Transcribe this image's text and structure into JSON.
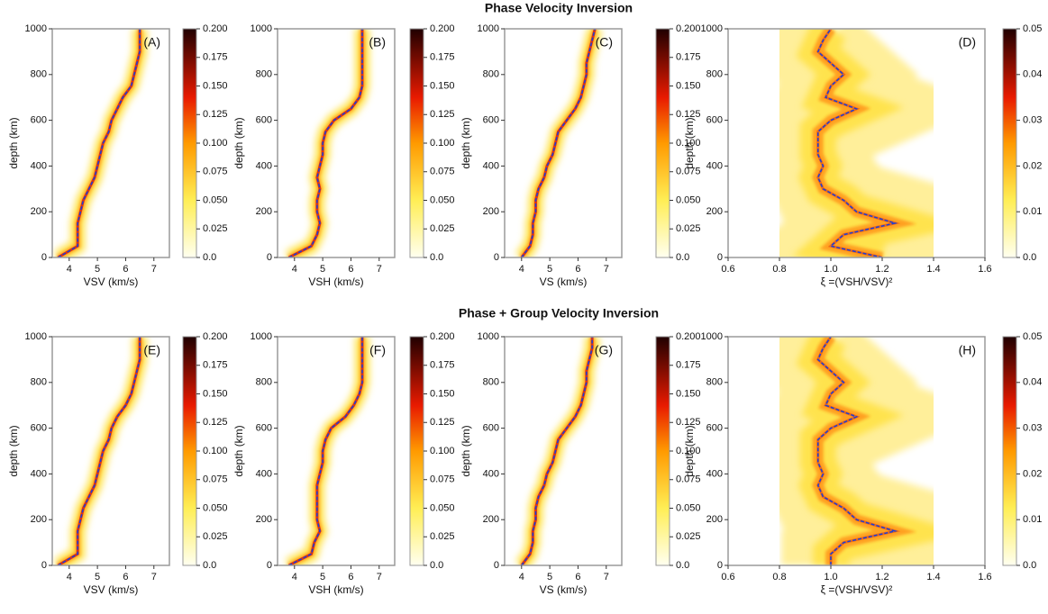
{
  "figure_titles": [
    "Phase Velocity Inversion",
    "Phase + Group Velocity Inversion"
  ],
  "chart_data": [
    {
      "type": "line",
      "label": "(A)",
      "xlabel": "VSV (km/s)",
      "ylabel": "depth (km)",
      "xlim": [
        3.4,
        7.55
      ],
      "xticks": [
        4,
        5,
        6,
        7
      ],
      "ylim": [
        1000,
        0
      ],
      "yticks": [
        0,
        200,
        400,
        600,
        800,
        1000
      ],
      "color": "#1a3fd6",
      "depth": [
        0,
        50,
        100,
        150,
        200,
        250,
        300,
        350,
        400,
        450,
        500,
        550,
        600,
        650,
        700,
        750,
        800,
        850,
        900,
        950,
        1000
      ],
      "values": [
        3.6,
        4.3,
        4.3,
        4.3,
        4.4,
        4.5,
        4.7,
        4.9,
        5.0,
        5.1,
        5.2,
        5.4,
        5.5,
        5.7,
        5.9,
        6.2,
        6.3,
        6.4,
        6.5,
        6.5,
        6.5
      ],
      "colorbar": {
        "lim": [
          0,
          0.2
        ],
        "ticks": [
          {
            "value": 0,
            "label": "0.0"
          },
          0.025,
          {
            "value": 0.05,
            "label": "0.050"
          },
          0.075,
          {
            "value": 0.1,
            "label": "0.100"
          },
          0.125,
          {
            "value": 0.15,
            "label": "0.150"
          },
          0.175,
          {
            "value": 0.2,
            "label": "0.200"
          }
        ]
      }
    },
    {
      "type": "line",
      "label": "(B)",
      "xlabel": "VSH (km/s)",
      "ylabel": "depth (km)",
      "xlim": [
        3.4,
        7.55
      ],
      "xticks": [
        4,
        5,
        6,
        7
      ],
      "ylim": [
        1000,
        0
      ],
      "yticks": [
        0,
        200,
        400,
        600,
        800,
        1000
      ],
      "color": "#1a3fd6",
      "depth": [
        0,
        50,
        100,
        150,
        200,
        250,
        300,
        350,
        400,
        450,
        500,
        550,
        600,
        650,
        700,
        750,
        800,
        850,
        900,
        950,
        1000
      ],
      "values": [
        3.8,
        4.6,
        4.8,
        4.9,
        4.8,
        4.8,
        4.9,
        4.8,
        4.9,
        5.0,
        5.0,
        5.1,
        5.4,
        6.0,
        6.3,
        6.4,
        6.4,
        6.4,
        6.4,
        6.4,
        6.4
      ],
      "colorbar": {
        "lim": [
          0,
          0.2
        ],
        "ticks": [
          {
            "value": 0,
            "label": "0.0"
          },
          0.025,
          {
            "value": 0.05,
            "label": "0.050"
          },
          0.075,
          {
            "value": 0.1,
            "label": "0.100"
          },
          0.125,
          {
            "value": 0.15,
            "label": "0.150"
          },
          0.175,
          {
            "value": 0.2,
            "label": "0.200"
          }
        ]
      }
    },
    {
      "type": "line",
      "label": "(C)",
      "xlabel": "VS (km/s)",
      "ylabel": "depth (km)",
      "xlim": [
        3.4,
        7.55
      ],
      "xticks": [
        4,
        5,
        6,
        7
      ],
      "ylim": [
        1000,
        0
      ],
      "yticks": [
        0,
        200,
        400,
        600,
        800,
        1000
      ],
      "color": "#1a3fd6",
      "depth": [
        0,
        50,
        100,
        150,
        200,
        250,
        300,
        350,
        400,
        450,
        500,
        550,
        600,
        650,
        700,
        750,
        800,
        850,
        900,
        950,
        1000
      ],
      "values": [
        4.0,
        4.3,
        4.4,
        4.4,
        4.5,
        4.5,
        4.6,
        4.8,
        4.9,
        5.1,
        5.2,
        5.3,
        5.6,
        5.9,
        6.1,
        6.2,
        6.3,
        6.3,
        6.4,
        6.5,
        6.6
      ],
      "colorbar": {
        "lim": [
          0,
          0.2
        ],
        "ticks": [
          {
            "value": 0,
            "label": "0.0"
          },
          0.025,
          {
            "value": 0.05,
            "label": "0.050"
          },
          0.075,
          {
            "value": 0.1,
            "label": "0.100"
          },
          0.125,
          {
            "value": 0.15,
            "label": "0.150"
          },
          0.175,
          {
            "value": 0.2,
            "label": "0.200"
          }
        ]
      }
    },
    {
      "type": "line",
      "label": "(D)",
      "xlabel": "ξ =(VSH/VSV)²",
      "ylabel": "depth (km)",
      "xlim": [
        0.6,
        1.6
      ],
      "xticks": [
        0.6,
        0.8,
        {
          "value": 1,
          "label": "1.0"
        },
        1.2,
        1.4,
        1.6
      ],
      "ylim": [
        1000,
        0
      ],
      "yticks": [
        0,
        200,
        400,
        600,
        800,
        1000
      ],
      "color": "#1a3fd6",
      "depth": [
        0,
        50,
        100,
        150,
        200,
        250,
        300,
        350,
        400,
        450,
        500,
        550,
        600,
        650,
        700,
        750,
        800,
        850,
        900,
        950,
        1000
      ],
      "values": [
        1.2,
        1.0,
        1.05,
        1.25,
        1.1,
        1.05,
        0.97,
        0.95,
        0.97,
        0.95,
        0.95,
        0.95,
        1.0,
        1.1,
        0.98,
        1.0,
        1.05,
        1.0,
        0.95,
        0.97,
        1.0
      ],
      "colorbar": {
        "lim": [
          0,
          0.05
        ],
        "ticks": [
          {
            "value": 0,
            "label": "0.0"
          },
          0.01,
          0.02,
          0.03,
          0.04,
          0.05
        ]
      }
    },
    {
      "type": "line",
      "label": "(E)",
      "xlabel": "VSV (km/s)",
      "ylabel": "depth (km)",
      "xlim": [
        3.4,
        7.55
      ],
      "xticks": [
        4,
        5,
        6,
        7
      ],
      "ylim": [
        1000,
        0
      ],
      "yticks": [
        0,
        200,
        400,
        600,
        800,
        1000
      ],
      "color": "#1a3fd6",
      "depth": [
        0,
        50,
        100,
        150,
        200,
        250,
        300,
        350,
        400,
        450,
        500,
        550,
        600,
        650,
        700,
        750,
        800,
        850,
        900,
        950,
        1000
      ],
      "values": [
        3.6,
        4.3,
        4.3,
        4.3,
        4.4,
        4.5,
        4.7,
        4.9,
        5.0,
        5.1,
        5.2,
        5.4,
        5.5,
        5.7,
        6.0,
        6.2,
        6.3,
        6.4,
        6.5,
        6.5,
        6.5
      ],
      "colorbar": {
        "lim": [
          0,
          0.2
        ],
        "ticks": [
          {
            "value": 0,
            "label": "0.0"
          },
          0.025,
          {
            "value": 0.05,
            "label": "0.050"
          },
          0.075,
          {
            "value": 0.1,
            "label": "0.100"
          },
          0.125,
          {
            "value": 0.15,
            "label": "0.150"
          },
          0.175,
          {
            "value": 0.2,
            "label": "0.200"
          }
        ]
      }
    },
    {
      "type": "line",
      "label": "(F)",
      "xlabel": "VSH (km/s)",
      "ylabel": "depth (km)",
      "xlim": [
        3.4,
        7.55
      ],
      "xticks": [
        4,
        5,
        6,
        7
      ],
      "ylim": [
        1000,
        0
      ],
      "yticks": [
        0,
        200,
        400,
        600,
        800,
        1000
      ],
      "color": "#1a3fd6",
      "depth": [
        0,
        50,
        100,
        150,
        200,
        250,
        300,
        350,
        400,
        450,
        500,
        550,
        600,
        650,
        700,
        750,
        800,
        850,
        900,
        950,
        1000
      ],
      "values": [
        3.8,
        4.6,
        4.7,
        4.9,
        4.8,
        4.8,
        4.8,
        4.8,
        4.9,
        5.0,
        5.0,
        5.1,
        5.3,
        5.8,
        6.1,
        6.3,
        6.4,
        6.4,
        6.4,
        6.4,
        6.4
      ],
      "colorbar": {
        "lim": [
          0,
          0.2
        ],
        "ticks": [
          {
            "value": 0,
            "label": "0.0"
          },
          0.025,
          {
            "value": 0.05,
            "label": "0.050"
          },
          0.075,
          {
            "value": 0.1,
            "label": "0.100"
          },
          0.125,
          {
            "value": 0.15,
            "label": "0.150"
          },
          0.175,
          {
            "value": 0.2,
            "label": "0.200"
          }
        ]
      }
    },
    {
      "type": "line",
      "label": "(G)",
      "xlabel": "VS (km/s)",
      "ylabel": "depth (km)",
      "xlim": [
        3.4,
        7.55
      ],
      "xticks": [
        4,
        5,
        6,
        7
      ],
      "ylim": [
        1000,
        0
      ],
      "yticks": [
        0,
        200,
        400,
        600,
        800,
        1000
      ],
      "color": "#1a3fd6",
      "depth": [
        0,
        50,
        100,
        150,
        200,
        250,
        300,
        350,
        400,
        450,
        500,
        550,
        600,
        650,
        700,
        750,
        800,
        850,
        900,
        950,
        1000
      ],
      "values": [
        4.0,
        4.3,
        4.4,
        4.4,
        4.5,
        4.5,
        4.6,
        4.8,
        4.9,
        5.1,
        5.2,
        5.3,
        5.6,
        5.9,
        6.1,
        6.2,
        6.3,
        6.3,
        6.4,
        6.5,
        6.5
      ],
      "colorbar": {
        "lim": [
          0,
          0.2
        ],
        "ticks": [
          {
            "value": 0,
            "label": "0.0"
          },
          0.025,
          {
            "value": 0.05,
            "label": "0.050"
          },
          0.075,
          {
            "value": 0.1,
            "label": "0.100"
          },
          0.125,
          {
            "value": 0.15,
            "label": "0.150"
          },
          0.175,
          {
            "value": 0.2,
            "label": "0.200"
          }
        ]
      }
    },
    {
      "type": "line",
      "label": "(H)",
      "xlabel": "ξ =(VSH/VSV)²",
      "ylabel": "depth (km)",
      "xlim": [
        0.6,
        1.6
      ],
      "xticks": [
        0.6,
        0.8,
        {
          "value": 1,
          "label": "1.0"
        },
        1.2,
        1.4,
        1.6
      ],
      "ylim": [
        1000,
        0
      ],
      "yticks": [
        0,
        200,
        400,
        600,
        800,
        1000
      ],
      "color": "#1a3fd6",
      "depth": [
        0,
        50,
        100,
        150,
        200,
        250,
        300,
        350,
        400,
        450,
        500,
        550,
        600,
        650,
        700,
        750,
        800,
        850,
        900,
        950,
        1000
      ],
      "values": [
        1.0,
        1.0,
        1.05,
        1.25,
        1.1,
        1.05,
        0.97,
        0.95,
        0.97,
        0.95,
        0.95,
        0.95,
        1.0,
        1.1,
        0.98,
        1.0,
        1.05,
        1.0,
        0.95,
        0.97,
        1.0
      ],
      "colorbar": {
        "lim": [
          0,
          0.05
        ],
        "ticks": [
          {
            "value": 0,
            "label": "0.0"
          },
          0.01,
          0.02,
          0.03,
          0.04,
          0.05
        ]
      }
    }
  ]
}
